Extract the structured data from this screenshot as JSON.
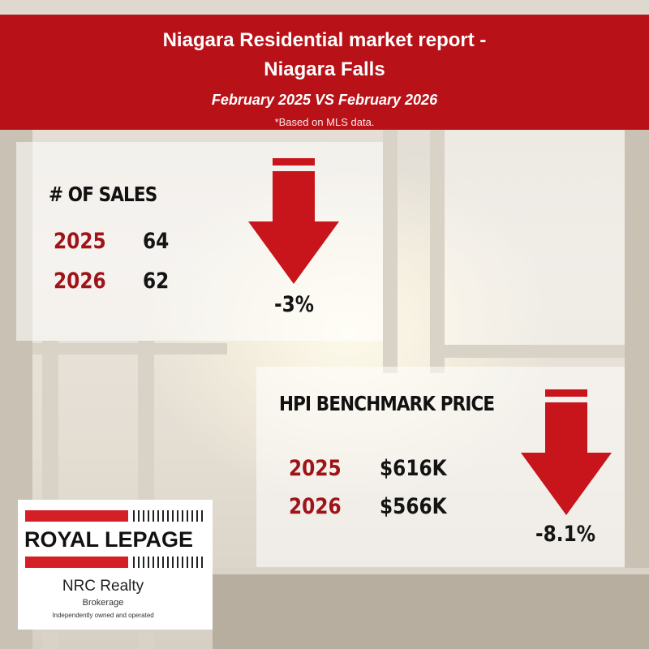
{
  "header": {
    "title_line1": "Niagara Residential market report -",
    "title_line2": "Niagara Falls",
    "period": "February 2025 VS February 2026",
    "note": "*Based on MLS data."
  },
  "sales": {
    "heading": "# OF SALES",
    "rows": [
      {
        "year": "2025",
        "value": "64"
      },
      {
        "year": "2026",
        "value": "62"
      }
    ],
    "change": "-3%",
    "direction": "down"
  },
  "hpi": {
    "heading": "HPI BENCHMARK PRICE",
    "rows": [
      {
        "year": "2025",
        "value": "$616K"
      },
      {
        "year": "2026",
        "value": "$566K"
      }
    ],
    "change": "-8.1%",
    "direction": "down"
  },
  "logo": {
    "brand": "ROYAL LEPAGE",
    "office": "NRC Realty",
    "brokerage": "Brokerage",
    "tagline": "Independently owned and operated"
  },
  "colors": {
    "brand_red": "#b81218",
    "arrow_red": "#c8141b",
    "year_red": "#9e1418"
  }
}
